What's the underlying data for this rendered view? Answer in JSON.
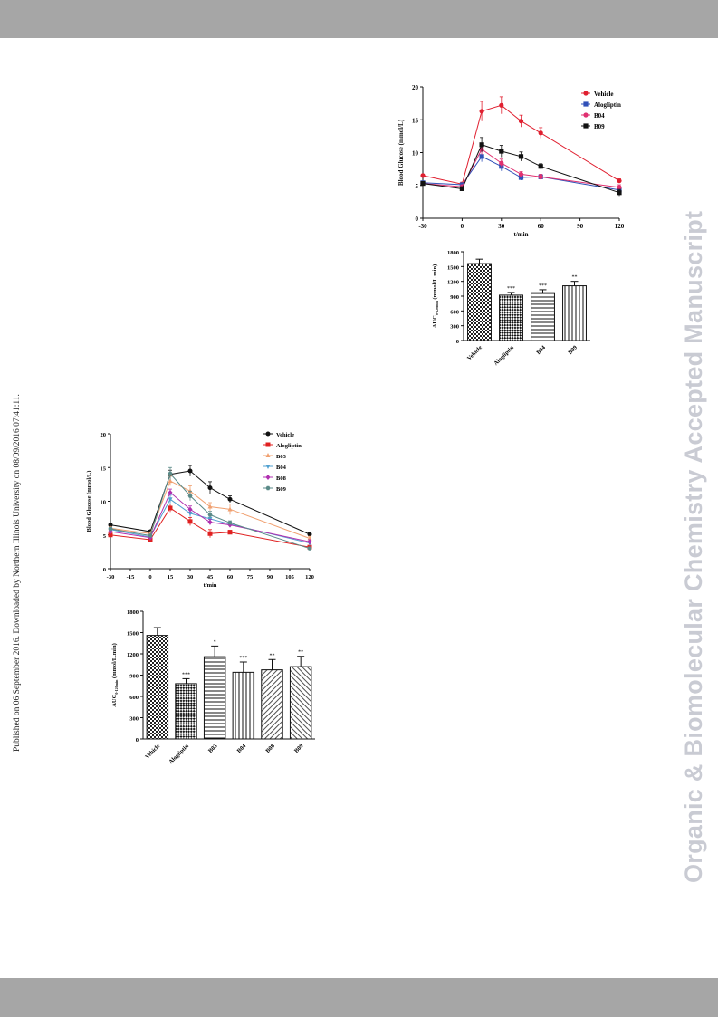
{
  "page": {
    "side_note": "Published on 06 September 2016. Downloaded by Northern Illinois University on 08/09/2016 07:41:11.",
    "watermark": "Organic & Biomolecular Chemistry Accepted Manuscript"
  },
  "chart_data": [
    {
      "id": "A",
      "type": "line",
      "xlabel": "t/min",
      "ylabel": "Blood Glucose (mmol/L)",
      "xlim": [
        -30,
        120
      ],
      "ylim": [
        0,
        20
      ],
      "xticks": [
        -30,
        0,
        30,
        60,
        90,
        120
      ],
      "yticks": [
        0,
        5,
        10,
        15,
        20
      ],
      "x": [
        -30,
        0,
        15,
        30,
        45,
        60,
        120
      ],
      "legend_position": "top-right",
      "series": [
        {
          "name": "Vehicle",
          "color": "#e02030",
          "marker": "circle",
          "values": [
            6.5,
            5.2,
            16.3,
            17.2,
            14.8,
            13.0,
            5.7
          ],
          "err": [
            0.2,
            0.3,
            1.5,
            1.3,
            0.9,
            0.8,
            0.3
          ]
        },
        {
          "name": "Alogliptin",
          "color": "#3050b8",
          "marker": "square",
          "values": [
            5.4,
            5.1,
            9.4,
            7.9,
            6.2,
            6.3,
            4.3
          ],
          "err": [
            0.2,
            0.3,
            0.8,
            0.7,
            0.4,
            0.3,
            0.4
          ]
        },
        {
          "name": "B04",
          "color": "#e03070",
          "marker": "circle",
          "values": [
            5.3,
            4.8,
            10.5,
            8.4,
            6.7,
            6.3,
            4.7
          ],
          "err": [
            0.2,
            0.3,
            0.8,
            0.6,
            0.4,
            0.4,
            0.4
          ]
        },
        {
          "name": "B09",
          "color": "#111111",
          "marker": "square",
          "values": [
            5.3,
            4.5,
            11.2,
            10.2,
            9.4,
            7.9,
            3.9
          ],
          "err": [
            0.2,
            0.3,
            1.1,
            0.9,
            0.7,
            0.4,
            0.5
          ]
        }
      ]
    },
    {
      "id": "B",
      "type": "bar",
      "ylabel": "AUC0-120min (mmol/L.min)",
      "ylim": [
        0,
        1800
      ],
      "yticks": [
        0,
        300,
        600,
        900,
        1200,
        1500,
        1800
      ],
      "categories": [
        "Vehicle",
        "Alogliptin",
        "B04",
        "B09"
      ],
      "values": [
        1560,
        920,
        970,
        1110
      ],
      "err": [
        90,
        55,
        60,
        90
      ],
      "significance": [
        "",
        "***",
        "***",
        "**"
      ]
    },
    {
      "id": "C",
      "type": "line",
      "xlabel": "t/min",
      "ylabel": "Blood Glucose (mmol/L)",
      "xlim": [
        -30,
        120
      ],
      "ylim": [
        0,
        20
      ],
      "xticks": [
        -30,
        -15,
        0,
        15,
        30,
        45,
        60,
        75,
        90,
        105,
        120
      ],
      "yticks": [
        0,
        5,
        10,
        15,
        20
      ],
      "x": [
        -30,
        0,
        15,
        30,
        45,
        60,
        120
      ],
      "legend_position": "top-right",
      "series": [
        {
          "name": "Vehicle",
          "color": "#111111",
          "marker": "circle",
          "values": [
            6.5,
            5.5,
            14.0,
            14.5,
            12.0,
            10.3,
            5.1
          ],
          "err": [
            0.2,
            0.2,
            0.6,
            0.8,
            0.9,
            0.5,
            0.2
          ]
        },
        {
          "name": "Alogliptin",
          "color": "#e02020",
          "marker": "square",
          "values": [
            5.0,
            4.3,
            9.0,
            7.0,
            5.2,
            5.4,
            3.2
          ],
          "err": [
            0.2,
            0.2,
            0.6,
            0.6,
            0.6,
            0.3,
            0.2
          ]
        },
        {
          "name": "B03",
          "color": "#f0a070",
          "marker": "triangle",
          "values": [
            6.0,
            5.2,
            13.0,
            11.5,
            9.2,
            8.8,
            4.5
          ],
          "err": [
            0.2,
            0.2,
            0.7,
            0.8,
            0.6,
            0.8,
            0.3
          ]
        },
        {
          "name": "B04",
          "color": "#50a0d0",
          "marker": "triangle-down",
          "values": [
            5.8,
            4.7,
            10.3,
            8.2,
            7.4,
            6.6,
            3.8
          ],
          "err": [
            0.2,
            0.2,
            0.6,
            0.5,
            0.5,
            0.3,
            0.3
          ]
        },
        {
          "name": "B08",
          "color": "#b030b0",
          "marker": "diamond",
          "values": [
            5.5,
            4.6,
            11.3,
            8.8,
            6.9,
            6.5,
            4.0
          ],
          "err": [
            0.2,
            0.2,
            0.5,
            0.5,
            0.4,
            0.3,
            0.3
          ]
        },
        {
          "name": "B09",
          "color": "#5a8a88",
          "marker": "hexagon",
          "values": [
            5.9,
            4.9,
            14.1,
            10.8,
            8.0,
            6.8,
            3.0
          ],
          "err": [
            0.2,
            0.2,
            0.9,
            0.7,
            0.5,
            0.3,
            0.2
          ]
        }
      ]
    },
    {
      "id": "D",
      "type": "bar",
      "ylabel": "AUC0-120min (mmol/L.min)",
      "ylim": [
        0,
        1800
      ],
      "yticks": [
        0,
        300,
        600,
        900,
        1200,
        1500,
        1800
      ],
      "categories": [
        "Vehicle",
        "Alogliptin",
        "B03",
        "B04",
        "B08",
        "B09"
      ],
      "values": [
        1460,
        780,
        1160,
        940,
        975,
        1020
      ],
      "err": [
        110,
        70,
        150,
        145,
        145,
        145
      ],
      "significance": [
        "",
        "***",
        "*",
        "***",
        "**",
        "**"
      ]
    }
  ]
}
